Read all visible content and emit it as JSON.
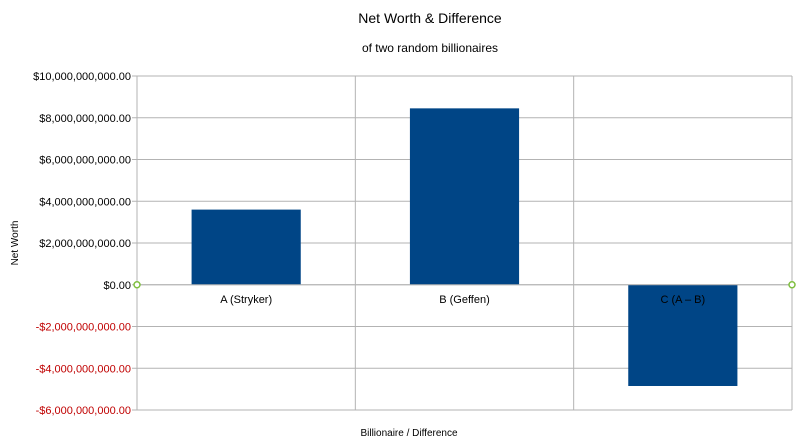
{
  "chart_data": {
    "type": "bar",
    "title": "Net Worth & Difference",
    "subtitle": "of two random billionaires",
    "xlabel": "Billionaire / Difference",
    "ylabel": "Net Worth",
    "categories": [
      "A (Stryker)",
      "B (Geffen)",
      "C (A – B)"
    ],
    "values": [
      3600000000,
      8450000000,
      -4850000000
    ],
    "ylim": [
      -6000000000,
      10000000000
    ],
    "yticks": [
      10000000000,
      8000000000,
      6000000000,
      4000000000,
      2000000000,
      0,
      -2000000000,
      -4000000000,
      -6000000000
    ],
    "ytick_labels": [
      "$10,000,000,000.00",
      "$8,000,000,000.00",
      "$6,000,000,000.00",
      "$4,000,000,000.00",
      "$2,000,000,000.00",
      "$0.00",
      "-$2,000,000,000.00",
      "-$4,000,000,000.00",
      "-$6,000,000,000.00"
    ],
    "grid": true,
    "legend": "none",
    "colors": {
      "bar": "#004586",
      "grid": "#b3b3b3",
      "negative_tick": "#c00000",
      "zero_marker": "#7fbf3f"
    }
  }
}
